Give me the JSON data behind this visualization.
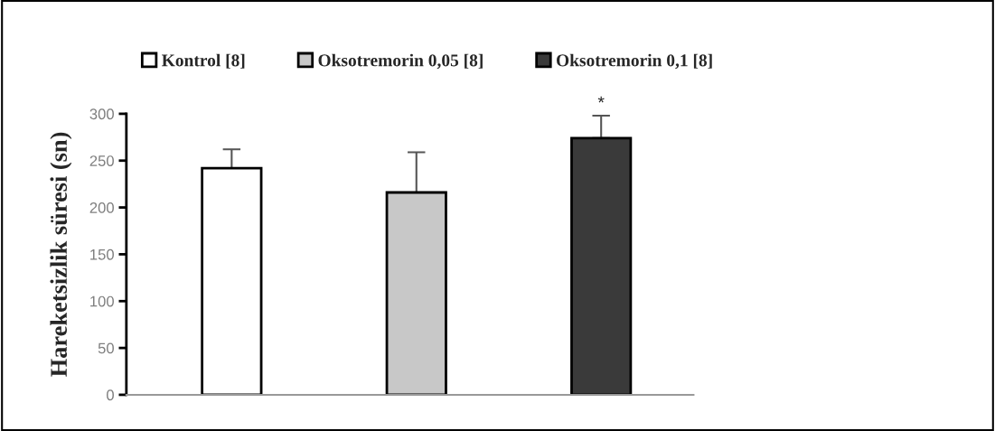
{
  "chart_data": {
    "type": "bar",
    "ylabel": "Hareketsizlik süresi (sn)",
    "categories": [
      null,
      null,
      null
    ],
    "series": [
      {
        "name": "Kontrol [8]",
        "color": "#ffffff",
        "values": [
          242,
          null,
          null
        ],
        "errors": [
          [
            242,
            262
          ],
          null,
          null
        ]
      },
      {
        "name": "Oksotremorin 0,05 [8]",
        "color": "#c8c8c8",
        "values": [
          null,
          216,
          null
        ],
        "errors": [
          null,
          [
            216,
            259
          ],
          null
        ]
      },
      {
        "name": "Oksotremorin 0,1 [8]",
        "color": "#3a3a3a",
        "values": [
          null,
          null,
          274
        ],
        "errors": [
          null,
          null,
          [
            274,
            298
          ]
        ]
      }
    ],
    "ylim": [
      0,
      300
    ],
    "yticks": [
      0,
      50,
      100,
      150,
      200,
      250,
      300
    ],
    "annotations": [
      "*"
    ],
    "legend": "top",
    "grid": false
  }
}
